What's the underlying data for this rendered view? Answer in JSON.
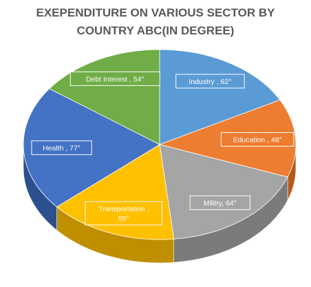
{
  "chart_data": {
    "type": "pie",
    "title_lines": [
      "EXEPENDITURE ON VARIOUS SECTOR BY",
      "COUNTRY ABC(IN DEGREE)"
    ],
    "unit": "degree",
    "legend": "none",
    "slices": [
      {
        "name": "Industry",
        "value": 62,
        "label_lines": [
          "Industry , 62°"
        ],
        "color": "#5b9bd5",
        "side": "#3e74a6",
        "label_box": "#5b9bd5",
        "label_text": "#ffffff"
      },
      {
        "name": "Education",
        "value": 48,
        "label_lines": [
          "Education , 48°"
        ],
        "color": "#ed7d31",
        "side": "#b55a1c",
        "label_box": "#ed7d31",
        "label_text": "#ffffff"
      },
      {
        "name": "Militry",
        "value": 64,
        "label_lines": [
          "Militry, 64°"
        ],
        "color": "#a5a5a5",
        "side": "#7b7b7b",
        "label_box": "#a5a5a5",
        "label_text": "#ffffff"
      },
      {
        "name": "Transportation",
        "value": 55,
        "label_lines": [
          "Transportation ,",
          "55°"
        ],
        "color": "#ffc000",
        "side": "#c08f00",
        "label_box": "#ffc000",
        "label_text": "#ffffff"
      },
      {
        "name": "Health",
        "value": 77,
        "label_lines": [
          "Health , 77°"
        ],
        "color": "#4472c4",
        "side": "#2c4f8e",
        "label_box": "#4472c4",
        "label_text": "#ffffff"
      },
      {
        "name": "Debt Interest",
        "value": 54,
        "label_lines": [
          "Debt Interest , 54°"
        ],
        "color": "#70ad47",
        "side": "#4e7d31",
        "label_box": "#70ad47",
        "label_text": "#ffffff"
      }
    ]
  }
}
